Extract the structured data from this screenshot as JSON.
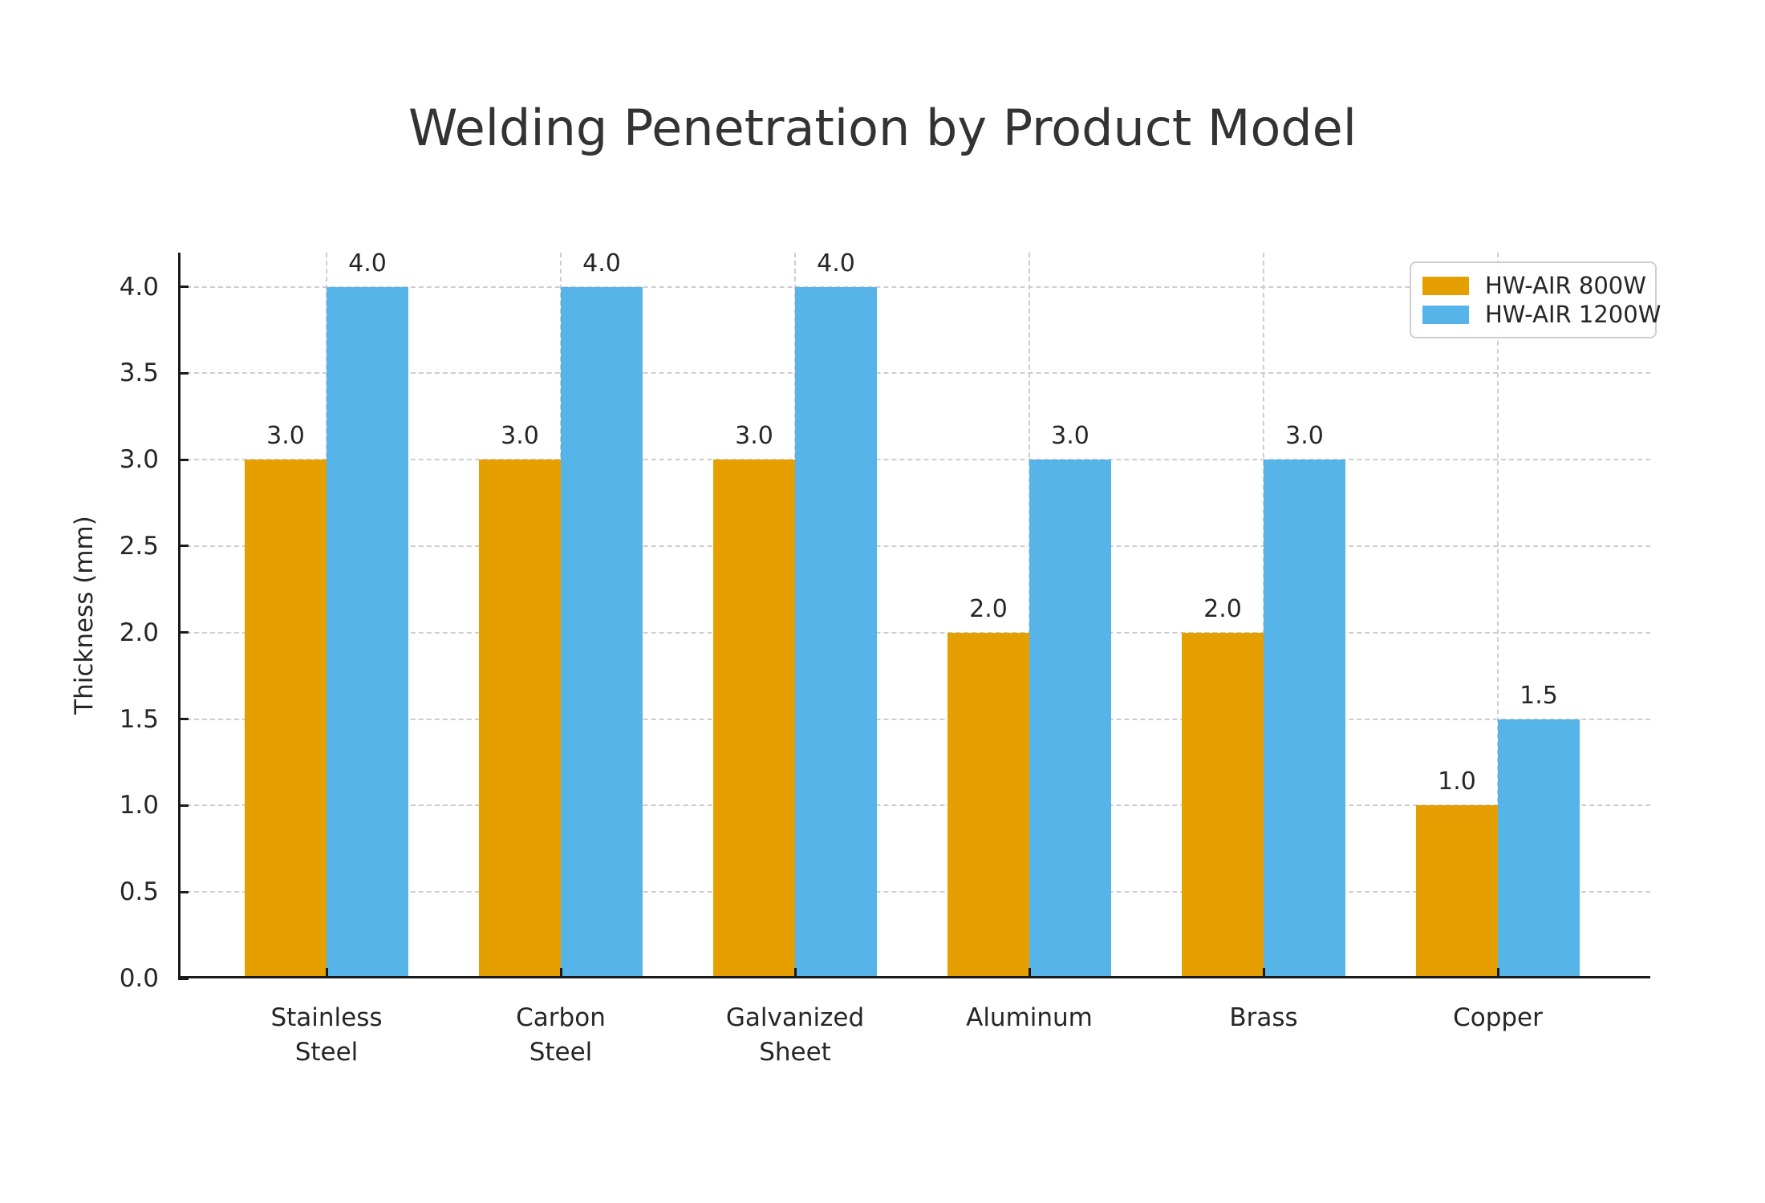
{
  "chart_data": {
    "type": "bar",
    "title": "Welding Penetration by Product Model",
    "ylabel": "Thickness (mm)",
    "xlabel": "",
    "categories": [
      "Stainless Steel",
      "Carbon Steel",
      "Galvanized Sheet",
      "Aluminum",
      "Brass",
      "Copper"
    ],
    "category_label_lines": [
      [
        "Stainless",
        "Steel"
      ],
      [
        "Carbon",
        "Steel"
      ],
      [
        "Galvanized",
        "Sheet"
      ],
      [
        "Aluminum"
      ],
      [
        "Brass"
      ],
      [
        "Copper"
      ]
    ],
    "series": [
      {
        "name": "HW-AIR 800W",
        "color": "#E69F00",
        "values": [
          3.0,
          3.0,
          3.0,
          2.0,
          2.0,
          1.0
        ],
        "value_labels": [
          "3.0",
          "3.0",
          "3.0",
          "2.0",
          "2.0",
          "1.0"
        ]
      },
      {
        "name": "HW-AIR 1200W",
        "color": "#56B4E9",
        "values": [
          4.0,
          4.0,
          4.0,
          3.0,
          3.0,
          1.5
        ],
        "value_labels": [
          "4.0",
          "4.0",
          "4.0",
          "3.0",
          "3.0",
          "1.5"
        ]
      }
    ],
    "yticks": [
      {
        "value": 0.0,
        "label": "0.0"
      },
      {
        "value": 0.5,
        "label": "0.5"
      },
      {
        "value": 1.0,
        "label": "1.0"
      },
      {
        "value": 1.5,
        "label": "1.5"
      },
      {
        "value": 2.0,
        "label": "2.0"
      },
      {
        "value": 2.5,
        "label": "2.5"
      },
      {
        "value": 3.0,
        "label": "3.0"
      },
      {
        "value": 3.5,
        "label": "3.5"
      },
      {
        "value": 4.0,
        "label": "4.0"
      }
    ],
    "ylim": [
      0,
      4.2
    ],
    "grid": true,
    "grid_style": "dashed",
    "legend_position": "upper right"
  },
  "colors": {
    "background": "#ffffff",
    "grid": "#cdcdcd",
    "axis": "#1a1a1a",
    "text": "#262626",
    "title": "#333333"
  }
}
